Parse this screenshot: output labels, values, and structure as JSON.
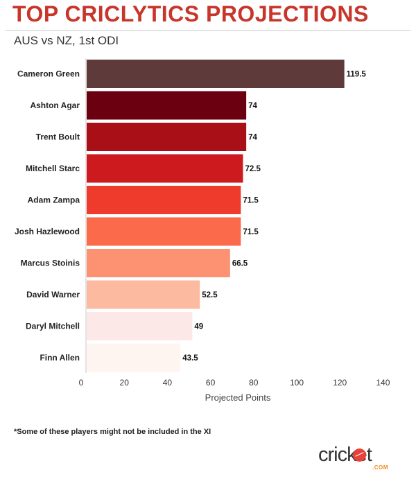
{
  "title": "TOP CRICLYTICS PROJECTIONS",
  "subtitle": "AUS vs NZ, 1st ODI",
  "footnote": "*Some of these players might not be included in the XI",
  "brand": {
    "name": "cricket",
    "suffix": ".COM",
    "logo_icon": "cricket-ball-icon"
  },
  "chart_data": {
    "type": "bar",
    "orientation": "horizontal",
    "title": "",
    "xlabel": "Projected Points",
    "ylabel": "",
    "xlim": [
      0,
      140
    ],
    "xticks": [
      0,
      20,
      40,
      60,
      80,
      100,
      120,
      140
    ],
    "grid": false,
    "categories": [
      "Cameron Green",
      "Ashton Agar",
      "Trent Boult",
      "Mitchell Starc",
      "Adam Zampa",
      "Josh Hazlewood",
      "Marcus Stoinis",
      "David Warner",
      "Daryl Mitchell",
      "Finn Allen"
    ],
    "values": [
      119.5,
      74,
      74,
      72.5,
      71.5,
      71.5,
      66.5,
      52.5,
      49,
      43.5
    ],
    "data_labels": [
      "119.5",
      "74",
      "74",
      "72.5",
      "71.5",
      "71.5",
      "66.5",
      "52.5",
      "49",
      "43.5"
    ],
    "colors": [
      "#5e3a3b",
      "#6b0010",
      "#a80f16",
      "#cc1a1e",
      "#ef3b2c",
      "#fb6a4a",
      "#fc9272",
      "#fcbba1",
      "#fde8e8",
      "#fff5f0"
    ]
  }
}
